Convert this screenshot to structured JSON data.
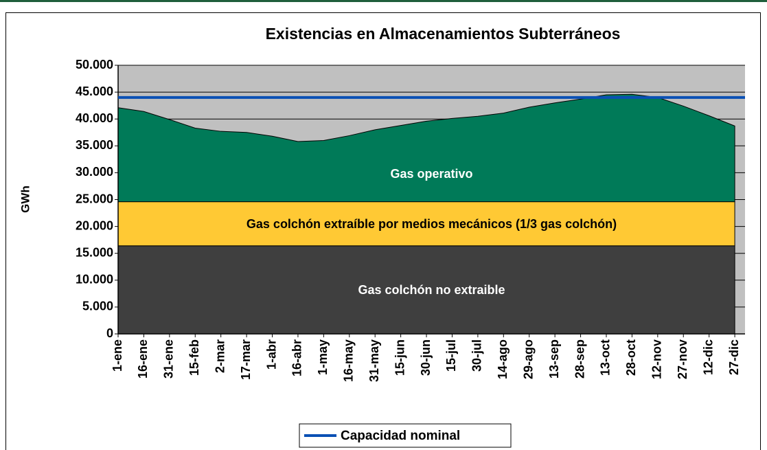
{
  "chart_data": {
    "type": "stacked_area",
    "title": "Existencias en Almacenamientos Subterráneos",
    "y_label": "GWh",
    "categories": [
      "1-ene",
      "16-ene",
      "31-ene",
      "15-feb",
      "2-mar",
      "17-mar",
      "1-abr",
      "16-abr",
      "1-may",
      "16-may",
      "31-may",
      "15-jun",
      "30-jun",
      "15-jul",
      "30-jul",
      "14-ago",
      "29-ago",
      "13-sep",
      "28-sep",
      "13-oct",
      "28-oct",
      "12-nov",
      "27-nov",
      "12-dic",
      "27-dic"
    ],
    "series": [
      {
        "name": "Gas colchón no extraible",
        "color": "#3f3f3f",
        "text_color": "#ffffff",
        "values": [
          16400,
          16400,
          16400,
          16400,
          16400,
          16400,
          16400,
          16400,
          16400,
          16400,
          16400,
          16400,
          16400,
          16400,
          16400,
          16400,
          16400,
          16400,
          16400,
          16400,
          16400,
          16400,
          16400,
          16400,
          16400
        ]
      },
      {
        "name": "Gas colchón extraíble por medios mecánicos (1/3 gas colchón)",
        "color": "#ffc934",
        "text_color": "#000000",
        "values": [
          8200,
          8200,
          8200,
          8200,
          8200,
          8200,
          8200,
          8200,
          8200,
          8200,
          8200,
          8200,
          8200,
          8200,
          8200,
          8200,
          8200,
          8200,
          8200,
          8200,
          8200,
          8200,
          8200,
          8200,
          8200
        ]
      },
      {
        "name": "Gas operativo",
        "color": "#007a58",
        "text_color": "#ffffff",
        "values": [
          17500,
          16800,
          15300,
          13700,
          13100,
          12900,
          12200,
          11200,
          11400,
          12300,
          13400,
          14200,
          15000,
          15500,
          15900,
          16500,
          17600,
          18400,
          19100,
          19900,
          20000,
          19400,
          17800,
          16000,
          14100
        ]
      }
    ],
    "reference_line": {
      "name": "Capacidad nominal",
      "color": "#0a50b4",
      "value": 44000
    },
    "ylim": [
      0,
      50000
    ],
    "yticks": [
      0,
      {
        "value": 5000,
        "label": "5.000"
      },
      {
        "value": 10000,
        "label": "10.000"
      },
      {
        "value": 15000,
        "label": "15.000"
      },
      {
        "value": 20000,
        "label": "20.000"
      },
      {
        "value": 25000,
        "label": "25.000"
      },
      {
        "value": 30000,
        "label": "30.000"
      },
      {
        "value": 35000,
        "label": "35.000"
      },
      {
        "value": 40000,
        "label": "40.000"
      },
      {
        "value": 45000,
        "label": "45.000"
      },
      {
        "value": 50000,
        "label": "50.000"
      }
    ],
    "grid": true,
    "plot_background": "#c0c0c0",
    "legend": "bottom"
  }
}
